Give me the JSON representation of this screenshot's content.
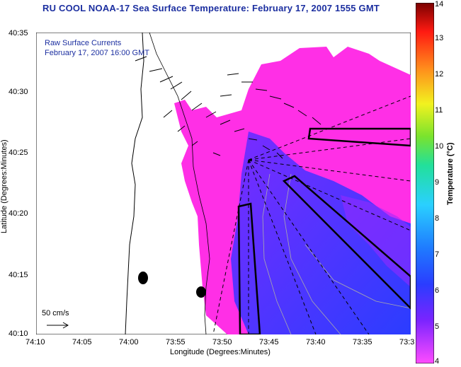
{
  "title": "RU COOL  NOAA-17  Sea Surface Temperature:  February 17, 2007 1555 GMT",
  "legend": {
    "line1": "Raw Surface Currents",
    "line2": "February 17, 2007 16:00 GMT"
  },
  "scale": {
    "label": "50 cm/s"
  },
  "axes": {
    "xlabel": "Longitude (Degrees:Minutes)",
    "ylabel": "Latitude (Degrees:Minutes)",
    "x_ticks": [
      "74:10",
      "74:05",
      "74:00",
      "73:55",
      "73:50",
      "73:45",
      "73:40",
      "73:35",
      "73:3"
    ],
    "y_ticks": [
      "40:35",
      "40:30",
      "40:25",
      "40:20",
      "40:15",
      "40:10"
    ]
  },
  "colorbar": {
    "label": "Temperature (°C)",
    "ticks": [
      "14",
      "13",
      "12",
      "11",
      "10",
      "9",
      "8",
      "7",
      "6",
      "5",
      "4"
    ],
    "min": 4,
    "max": 14
  },
  "colors": {
    "land": "#ffffff",
    "sst_warm": "#ff2fe6",
    "sst_cool": "#2b3dff",
    "title_text": "#1c2fa0"
  }
}
